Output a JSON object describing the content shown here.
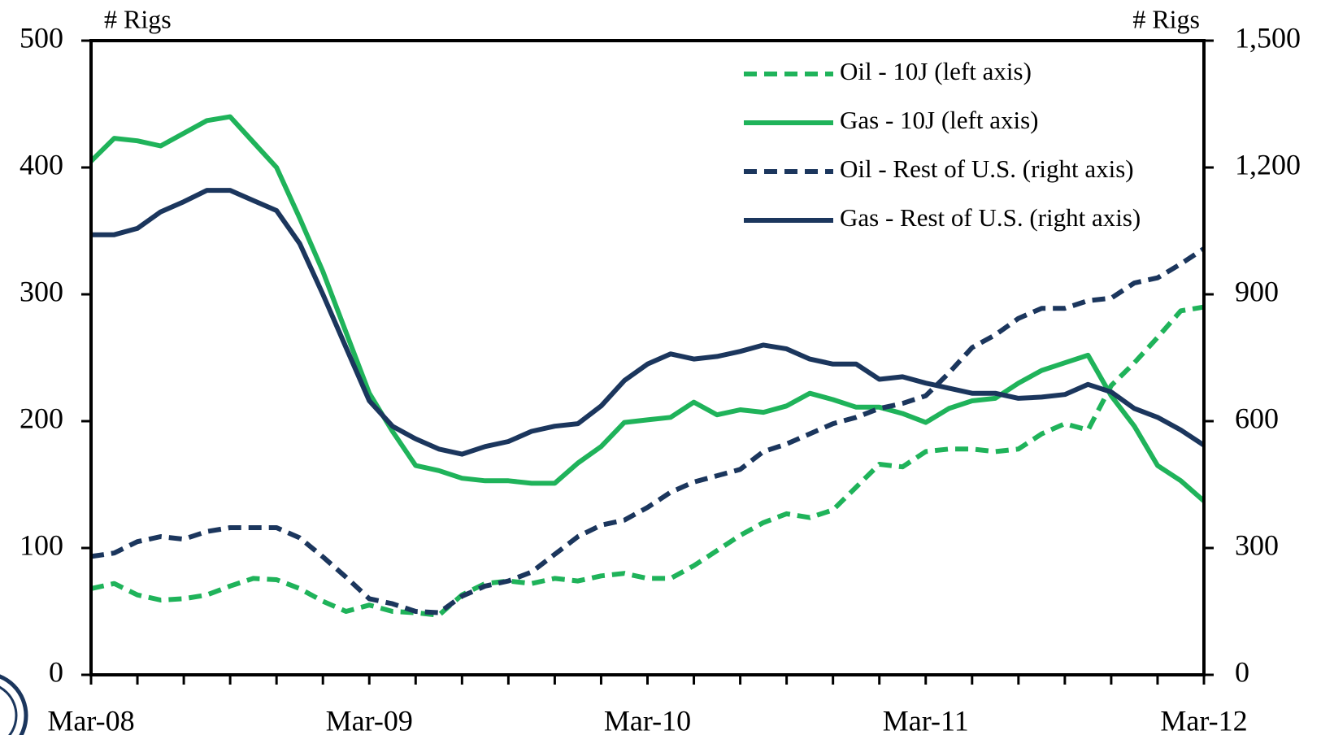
{
  "chart_data": {
    "type": "line",
    "y_label": "# Rigs",
    "y2_label": "# Rigs",
    "categories": [
      "Mar-08",
      null,
      null,
      null,
      null,
      null,
      null,
      null,
      null,
      null,
      null,
      null,
      "Mar-09",
      null,
      null,
      null,
      null,
      null,
      null,
      null,
      null,
      null,
      null,
      null,
      "Mar-10",
      null,
      null,
      null,
      null,
      null,
      null,
      null,
      null,
      null,
      null,
      null,
      "Mar-11",
      null,
      null,
      null,
      null,
      null,
      null,
      null,
      null,
      null,
      null,
      null,
      "Mar-12"
    ],
    "ylim": [
      0,
      500
    ],
    "yticks": [
      0,
      100,
      200,
      300,
      400,
      500
    ],
    "y2lim": [
      0,
      1500
    ],
    "y2ticks": [
      0,
      300,
      600,
      900,
      {
        "value": 1200,
        "label": "1,200"
      },
      {
        "value": 1500,
        "label": "1,500"
      }
    ],
    "grid": false,
    "legend": "upper right",
    "series": [
      {
        "name": "Oil - 10J (left axis)",
        "color": "#1fb35a",
        "style": "dashed",
        "axis": "y",
        "values": [
          68,
          72,
          63,
          59,
          60,
          63,
          70,
          76,
          75,
          68,
          58,
          50,
          55,
          50,
          49,
          47,
          63,
          72,
          74,
          72,
          76,
          74,
          78,
          80,
          76,
          76,
          86,
          98,
          110,
          120,
          127,
          124,
          130,
          148,
          166,
          164,
          176,
          178,
          178,
          176,
          178,
          190,
          198,
          193,
          228,
          246,
          266,
          287,
          290
        ]
      },
      {
        "name": "Gas - 10J (left axis)",
        "color": "#1fb35a",
        "style": "solid",
        "axis": "y",
        "values": [
          405,
          423,
          421,
          417,
          427,
          437,
          440,
          420,
          400,
          360,
          318,
          270,
          222,
          192,
          165,
          161,
          155,
          153,
          153,
          151,
          151,
          167,
          180,
          199,
          201,
          203,
          215,
          205,
          209,
          207,
          212,
          222,
          217,
          211,
          211,
          206,
          199,
          210,
          216,
          218,
          230,
          240,
          246,
          252,
          220,
          196,
          165,
          153,
          137
        ]
      },
      {
        "name": "Oil - Rest of U.S. (right axis)",
        "color": "#1b365d",
        "style": "dashed",
        "axis": "y2",
        "values": [
          280,
          288,
          315,
          327,
          321,
          339,
          348,
          348,
          348,
          324,
          279,
          231,
          180,
          168,
          150,
          147,
          186,
          210,
          222,
          243,
          285,
          327,
          354,
          366,
          396,
          432,
          456,
          471,
          486,
          528,
          546,
          570,
          594,
          609,
          630,
          642,
          660,
          714,
          774,
          804,
          843,
          867,
          867,
          885,
          891,
          927,
          939,
          972,
          1008
        ]
      },
      {
        "name": "Gas - Rest of U.S. (right axis)",
        "color": "#1b365d",
        "style": "solid",
        "axis": "y2",
        "values": [
          1041,
          1041,
          1056,
          1095,
          1119,
          1146,
          1146,
          1122,
          1098,
          1020,
          900,
          774,
          648,
          588,
          558,
          534,
          522,
          540,
          552,
          576,
          588,
          594,
          636,
          696,
          735,
          759,
          747,
          753,
          765,
          780,
          771,
          747,
          735,
          735,
          699,
          705,
          690,
          678,
          666,
          666,
          654,
          657,
          663,
          687,
          669,
          630,
          609,
          579,
          543
        ]
      }
    ]
  }
}
